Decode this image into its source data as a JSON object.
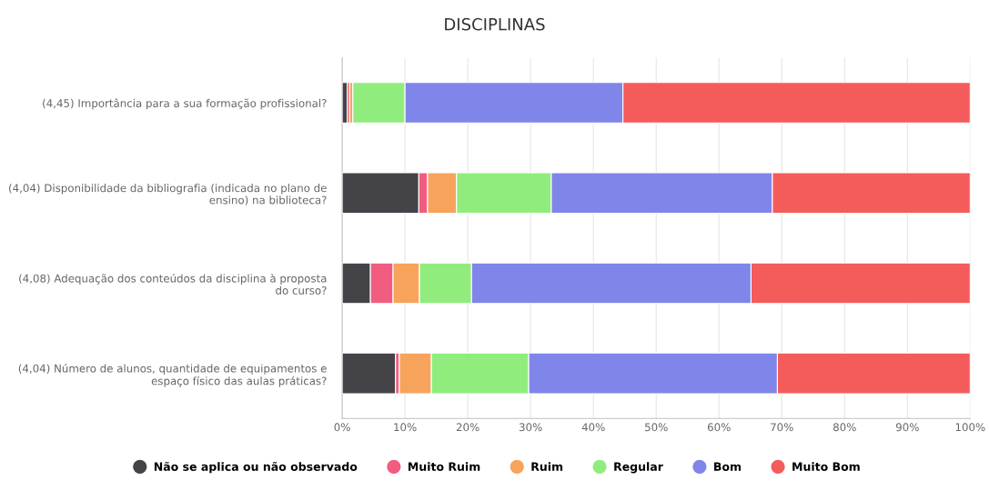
{
  "chart_data": {
    "type": "bar",
    "orientation": "horizontal",
    "stacked": true,
    "title": "DISCIPLINAS",
    "categories": [
      "(4,45) Importância para a sua formação profissional?",
      "(4,04) Disponibilidade da bibliografia (indicada no plano de\nensino) na biblioteca?",
      "(4,08) Adequação dos conteúdos da disciplina à proposta\ndo curso?",
      "(4,04) Número de alunos, quantidade de equipamentos e\nespaço físico das aulas práticas?"
    ],
    "series": [
      {
        "name": "Não se aplica ou não observado",
        "color": "#434348",
        "values": [
          0.8,
          12.2,
          4.5,
          8.5
        ]
      },
      {
        "name": "Muito Ruim",
        "color": "#f15c80",
        "values": [
          0.4,
          1.4,
          3.6,
          0.6
        ]
      },
      {
        "name": "Ruim",
        "color": "#f7a35c",
        "values": [
          0.5,
          4.6,
          4.2,
          5.1
        ]
      },
      {
        "name": "Regular",
        "color": "#90ed7d",
        "values": [
          8.3,
          15.1,
          8.3,
          15.5
        ]
      },
      {
        "name": "Bom",
        "color": "#8085e9",
        "values": [
          34.7,
          35.2,
          44.5,
          39.6
        ]
      },
      {
        "name": "Muito Bom",
        "color": "#f45b5b",
        "values": [
          55.3,
          31.5,
          34.9,
          30.7
        ]
      }
    ],
    "xlim": [
      0,
      100
    ],
    "xticks": [
      {
        "value": 0,
        "label": "0%"
      },
      {
        "value": 10,
        "label": "10%"
      },
      {
        "value": 20,
        "label": "20%"
      },
      {
        "value": 30,
        "label": "30%"
      },
      {
        "value": 40,
        "label": "40%"
      },
      {
        "value": 50,
        "label": "50%"
      },
      {
        "value": 60,
        "label": "60%"
      },
      {
        "value": 70,
        "label": "70%"
      },
      {
        "value": 80,
        "label": "80%"
      },
      {
        "value": 90,
        "label": "90%"
      },
      {
        "value": 100,
        "label": "100%"
      }
    ],
    "grid": "x",
    "legend": "bottom"
  }
}
